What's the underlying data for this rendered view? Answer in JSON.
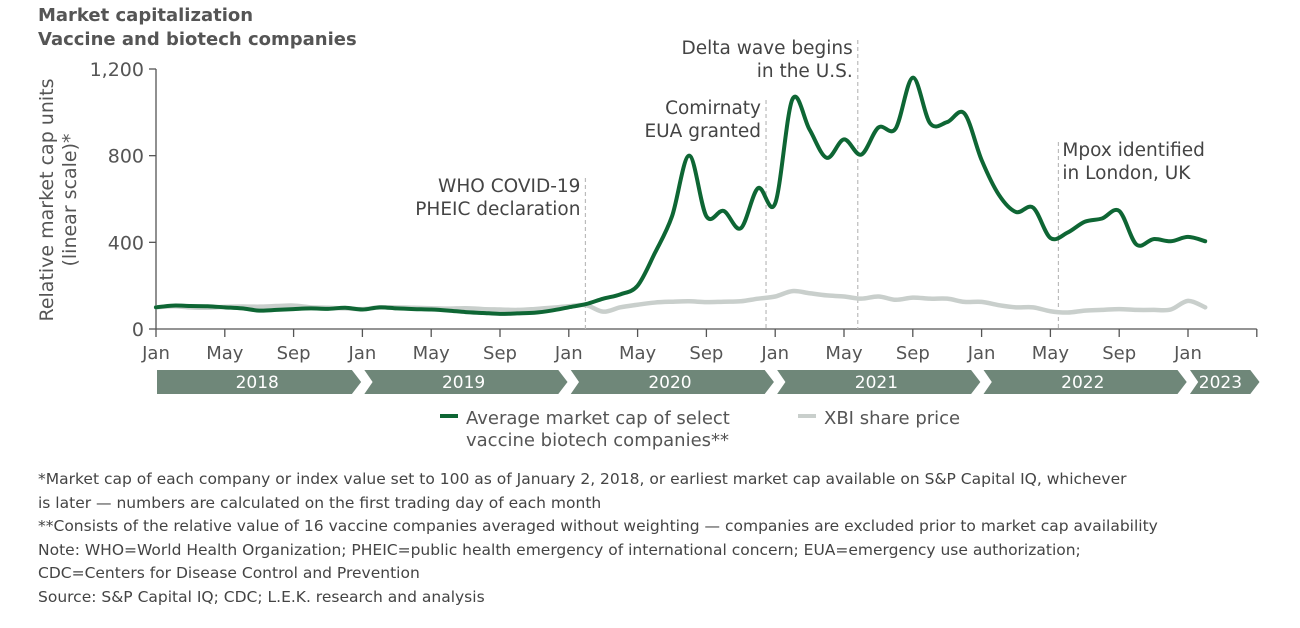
{
  "title": "Market capitalization",
  "subtitle": "Vaccine and biotech companies",
  "chart_data": {
    "type": "line",
    "ylabel": "Relative market cap units",
    "ylabel2": "(linear scale)*",
    "ylim": [
      0,
      1200
    ],
    "yticks": [
      "0",
      "400",
      "800",
      "1,200"
    ],
    "ytick_values": [
      0,
      400,
      800,
      1200
    ],
    "xlim": [
      "2018-01",
      "2023-05"
    ],
    "xtick_labels": [
      "Jan",
      "May",
      "Sep",
      "Jan",
      "May",
      "Sep",
      "Jan",
      "May",
      "Sep",
      "Jan",
      "May",
      "Sep",
      "Jan",
      "May",
      "Sep",
      "Jan"
    ],
    "xtick_dates": [
      "2018-01",
      "2018-05",
      "2018-09",
      "2019-01",
      "2019-05",
      "2019-09",
      "2020-01",
      "2020-05",
      "2020-09",
      "2021-01",
      "2021-05",
      "2021-09",
      "2022-01",
      "2022-05",
      "2022-09",
      "2023-01"
    ],
    "years": [
      "2018",
      "2019",
      "2020",
      "2021",
      "2022",
      "2023"
    ],
    "grid": false,
    "legend_position": "bottom",
    "x": [
      "2018-01",
      "2018-02",
      "2018-03",
      "2018-04",
      "2018-05",
      "2018-06",
      "2018-07",
      "2018-08",
      "2018-09",
      "2018-10",
      "2018-11",
      "2018-12",
      "2019-01",
      "2019-02",
      "2019-03",
      "2019-04",
      "2019-05",
      "2019-06",
      "2019-07",
      "2019-08",
      "2019-09",
      "2019-10",
      "2019-11",
      "2019-12",
      "2020-01",
      "2020-02",
      "2020-03",
      "2020-04",
      "2020-05",
      "2020-06",
      "2020-07",
      "2020-08",
      "2020-09",
      "2020-10",
      "2020-11",
      "2020-12",
      "2021-01",
      "2021-02",
      "2021-03",
      "2021-04",
      "2021-05",
      "2021-06",
      "2021-07",
      "2021-08",
      "2021-09",
      "2021-10",
      "2021-11",
      "2021-12",
      "2022-01",
      "2022-02",
      "2022-03",
      "2022-04",
      "2022-05",
      "2022-06",
      "2022-07",
      "2022-08",
      "2022-09",
      "2022-10",
      "2022-11",
      "2022-12",
      "2023-01",
      "2023-02"
    ],
    "series": [
      {
        "name": "Average market cap of select vaccine biotech companies**",
        "color": "#0e6634",
        "values": [
          100,
          108,
          106,
          105,
          100,
          95,
          85,
          88,
          92,
          95,
          93,
          98,
          90,
          100,
          95,
          92,
          90,
          85,
          78,
          74,
          70,
          72,
          75,
          85,
          100,
          115,
          140,
          160,
          200,
          350,
          520,
          800,
          520,
          545,
          465,
          650,
          580,
          1060,
          920,
          790,
          875,
          805,
          930,
          925,
          1160,
          950,
          955,
          995,
          780,
          620,
          540,
          560,
          420,
          445,
          495,
          510,
          545,
          390,
          415,
          405,
          425,
          405
        ]
      },
      {
        "name": "XBI share price",
        "color": "#c9cfcc",
        "values": [
          100,
          105,
          100,
          98,
          102,
          104,
          103,
          106,
          108,
          100,
          98,
          95,
          92,
          100,
          100,
          98,
          96,
          94,
          96,
          92,
          90,
          88,
          92,
          98,
          105,
          110,
          80,
          100,
          112,
          122,
          126,
          128,
          124,
          126,
          128,
          140,
          150,
          175,
          165,
          155,
          150,
          140,
          150,
          135,
          145,
          140,
          140,
          125,
          125,
          110,
          100,
          100,
          82,
          76,
          85,
          88,
          92,
          88,
          88,
          90,
          130,
          100
        ]
      }
    ],
    "annotations": [
      {
        "date": "2020-01-30",
        "text": [
          "WHO COVID-19",
          "PHEIC declaration"
        ]
      },
      {
        "date": "2020-12-15",
        "text": [
          "Comirnaty",
          "EUA granted"
        ]
      },
      {
        "date": "2021-05-25",
        "text": [
          "Delta wave begins",
          "in the U.S."
        ]
      },
      {
        "date": "2022-05-15",
        "text": [
          "Mpox identified",
          "in London, UK"
        ]
      }
    ]
  },
  "legend": {
    "green_label_1": "Average market cap of select",
    "green_label_2": "vaccine biotech companies**",
    "gray_label": "XBI share price"
  },
  "notes": [
    "*Market cap of each company or index value set to 100 as of January 2, 2018, or earliest market cap available on S&P Capital IQ, whichever",
    "is later — numbers are calculated on the first trading day of each month",
    "**Consists of the relative value of 16 vaccine companies averaged without weighting — companies are excluded prior to market cap availability",
    "Note: WHO=World Health Organization; PHEIC=public health emergency of international concern; EUA=emergency use authorization;",
    "CDC=Centers for Disease Control and Prevention",
    "Source: S&P Capital IQ; CDC; L.E.K. research and analysis"
  ]
}
